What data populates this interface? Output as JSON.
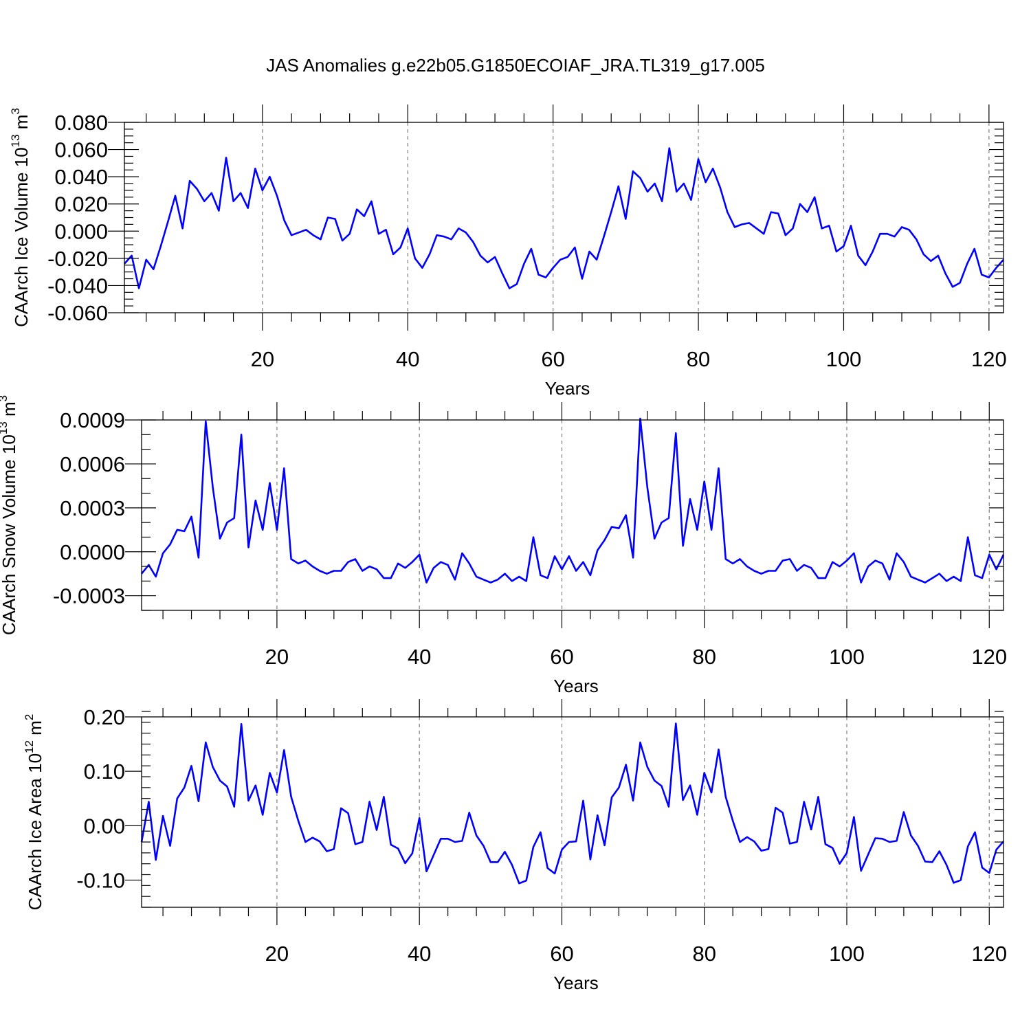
{
  "title": "JAS Anomalies g.e22b05.G1850ECOIAF_JRA.TL319_g17.005",
  "colors": {
    "line": "#0000ff",
    "grid": "#888888",
    "axis": "#000000"
  },
  "chart_data": [
    {
      "type": "line",
      "ylabel": "CAArch Ice Volume 10",
      "ylabel_exp": "13",
      "ylabel_unit": " m",
      "ylabel_unit_exp": "3",
      "xlabel": "Years",
      "xlim": [
        1,
        122
      ],
      "ylim": [
        -0.06,
        0.08
      ],
      "xticks": [
        20,
        40,
        60,
        80,
        100,
        120
      ],
      "x_tick_labels": [
        "20",
        "40",
        "60",
        "80",
        "100",
        "120"
      ],
      "yticks": [
        -0.06,
        -0.04,
        -0.02,
        0.0,
        0.02,
        0.04,
        0.06,
        0.08
      ],
      "y_tick_labels": [
        "-0.060",
        "-0.040",
        "-0.020",
        "0.000",
        "0.020",
        "0.040",
        "0.060",
        "0.080"
      ],
      "x_minor_step": 4,
      "y_minor_step": 0.005,
      "grid": "vertical-dashed",
      "series": [
        {
          "name": "CAArch Ice Volume",
          "values": [
            -0.024,
            -0.018,
            -0.042,
            -0.021,
            -0.028,
            -0.011,
            0.007,
            0.026,
            0.002,
            0.037,
            0.031,
            0.022,
            0.028,
            0.015,
            0.054,
            0.022,
            0.028,
            0.017,
            0.046,
            0.03,
            0.04,
            0.026,
            0.008,
            -0.003,
            -0.001,
            0.001,
            -0.003,
            -0.006,
            0.01,
            0.009,
            -0.007,
            -0.002,
            0.016,
            0.011,
            0.022,
            -0.002,
            0.001,
            -0.017,
            -0.012,
            0.002,
            -0.02,
            -0.027,
            -0.017,
            -0.003,
            -0.004,
            -0.006,
            0.002,
            -0.001,
            -0.008,
            -0.018,
            -0.023,
            -0.019,
            -0.031,
            -0.042,
            -0.039,
            -0.024,
            -0.013,
            -0.032,
            -0.034,
            -0.027,
            -0.021,
            -0.019,
            -0.012,
            -0.035,
            -0.015,
            -0.021,
            -0.004,
            0.014,
            0.033,
            0.009,
            0.044,
            0.039,
            0.029,
            0.035,
            0.022,
            0.061,
            0.029,
            0.035,
            0.023,
            0.053,
            0.036,
            0.046,
            0.032,
            0.014,
            0.003,
            0.005,
            0.006,
            0.002,
            -0.002,
            0.014,
            0.013,
            -0.003,
            0.002,
            0.02,
            0.014,
            0.025,
            0.002,
            0.004,
            -0.015,
            -0.011,
            0.004,
            -0.018,
            -0.025,
            -0.015,
            -0.002,
            -0.002,
            -0.004,
            0.003,
            0.001,
            -0.006,
            -0.017,
            -0.022,
            -0.018,
            -0.031,
            -0.041,
            -0.038,
            -0.024,
            -0.013,
            -0.032,
            -0.034,
            -0.027,
            -0.021
          ]
        }
      ]
    },
    {
      "type": "line",
      "ylabel": "CAArch Snow Volume 10",
      "ylabel_exp": "13",
      "ylabel_unit": " m",
      "ylabel_unit_exp": "3",
      "xlabel": "Years",
      "xlim": [
        1,
        122
      ],
      "ylim": [
        -0.0004,
        0.0009
      ],
      "xticks": [
        20,
        40,
        60,
        80,
        100,
        120
      ],
      "x_tick_labels": [
        "20",
        "40",
        "60",
        "80",
        "100",
        "120"
      ],
      "yticks": [
        -0.0003,
        0.0,
        0.0003,
        0.0006,
        0.0009
      ],
      "y_tick_labels": [
        "-0.0003",
        "0.0000",
        "0.0003",
        "0.0006",
        "0.0009"
      ],
      "x_minor_step": 4,
      "y_minor_step": 0.0001,
      "grid": "vertical-dashed",
      "series": [
        {
          "name": "CAArch Snow Volume",
          "values": [
            -0.00015,
            -9e-05,
            -0.00017,
            -1e-05,
            5e-05,
            0.00015,
            0.00014,
            0.00024,
            -4e-05,
            0.00089,
            0.00044,
            9e-05,
            0.0002,
            0.00023,
            0.0008,
            3e-05,
            0.00035,
            0.00015,
            0.00047,
            0.00015,
            0.00057,
            -5e-05,
            -8e-05,
            -6e-05,
            -0.0001,
            -0.00013,
            -0.00015,
            -0.00013,
            -0.00013,
            -7e-05,
            -5e-05,
            -0.00013,
            -0.0001,
            -0.00012,
            -0.00018,
            -0.00018,
            -8e-05,
            -0.00011,
            -7e-05,
            -2e-05,
            -0.00021,
            -0.00011,
            -7e-05,
            -9e-05,
            -0.00019,
            -1e-05,
            -8e-05,
            -0.00017,
            -0.00019,
            -0.00021,
            -0.00019,
            -0.00015,
            -0.0002,
            -0.00017,
            -0.0002,
            0.0001,
            -0.00016,
            -0.00018,
            -3e-05,
            -0.00012,
            -3e-05,
            -0.00013,
            -7e-05,
            -0.00016,
            1e-05,
            8e-05,
            0.00017,
            0.00016,
            0.00025,
            -4e-05,
            0.00091,
            0.00044,
            9e-05,
            0.0002,
            0.00023,
            0.00081,
            4e-05,
            0.00036,
            0.00015,
            0.00048,
            0.00015,
            0.00057,
            -5e-05,
            -8e-05,
            -5e-05,
            -0.0001,
            -0.00013,
            -0.00015,
            -0.00013,
            -0.00013,
            -6e-05,
            -5e-05,
            -0.00013,
            -9e-05,
            -0.00011,
            -0.00018,
            -0.00018,
            -7e-05,
            -0.0001,
            -6e-05,
            -1e-05,
            -0.00021,
            -0.0001,
            -6e-05,
            -8e-05,
            -0.00019,
            -1e-05,
            -7e-05,
            -0.00017,
            -0.00019,
            -0.00021,
            -0.00018,
            -0.00015,
            -0.0002,
            -0.00017,
            -0.0002,
            0.0001,
            -0.00016,
            -0.00018,
            -2e-05,
            -0.00012,
            -2e-05
          ]
        }
      ]
    },
    {
      "type": "line",
      "ylabel": "CAArch Ice Area 10",
      "ylabel_exp": "12",
      "ylabel_unit": " m",
      "ylabel_unit_exp": "2",
      "xlabel": "Years",
      "xlim": [
        1,
        122
      ],
      "ylim": [
        -0.15,
        0.2
      ],
      "xticks": [
        20,
        40,
        60,
        80,
        100,
        120
      ],
      "x_tick_labels": [
        "20",
        "40",
        "60",
        "80",
        "100",
        "120"
      ],
      "yticks": [
        -0.1,
        0.0,
        0.1,
        0.2
      ],
      "y_tick_labels": [
        "-0.10",
        "0.00",
        "0.10",
        "0.20"
      ],
      "x_minor_step": 4,
      "y_minor_step": 0.02,
      "grid": "vertical-dashed",
      "series": [
        {
          "name": "CAArch Ice Area",
          "values": [
            -0.03,
            0.044,
            -0.063,
            0.018,
            -0.037,
            0.05,
            0.07,
            0.11,
            0.045,
            0.153,
            0.108,
            0.083,
            0.072,
            0.035,
            0.187,
            0.046,
            0.074,
            0.02,
            0.097,
            0.061,
            0.139,
            0.053,
            0.009,
            -0.03,
            -0.022,
            -0.029,
            -0.047,
            -0.043,
            0.032,
            0.023,
            -0.034,
            -0.03,
            0.044,
            -0.008,
            0.053,
            -0.035,
            -0.042,
            -0.069,
            -0.051,
            0.014,
            -0.084,
            -0.054,
            -0.024,
            -0.024,
            -0.03,
            -0.028,
            0.024,
            -0.018,
            -0.037,
            -0.067,
            -0.067,
            -0.048,
            -0.072,
            -0.106,
            -0.101,
            -0.039,
            -0.012,
            -0.078,
            -0.088,
            -0.044,
            -0.03,
            -0.029,
            0.046,
            -0.062,
            0.019,
            -0.036,
            0.052,
            0.07,
            0.112,
            0.046,
            0.153,
            0.108,
            0.083,
            0.073,
            0.035,
            0.188,
            0.047,
            0.074,
            0.02,
            0.097,
            0.061,
            0.14,
            0.053,
            0.009,
            -0.03,
            -0.021,
            -0.029,
            -0.046,
            -0.043,
            0.033,
            0.024,
            -0.033,
            -0.03,
            0.044,
            -0.007,
            0.053,
            -0.034,
            -0.041,
            -0.07,
            -0.05,
            0.016,
            -0.083,
            -0.053,
            -0.023,
            -0.024,
            -0.03,
            -0.028,
            0.025,
            -0.018,
            -0.037,
            -0.066,
            -0.067,
            -0.047,
            -0.072,
            -0.105,
            -0.1,
            -0.038,
            -0.012,
            -0.077,
            -0.087,
            -0.044,
            -0.029
          ]
        }
      ]
    }
  ]
}
